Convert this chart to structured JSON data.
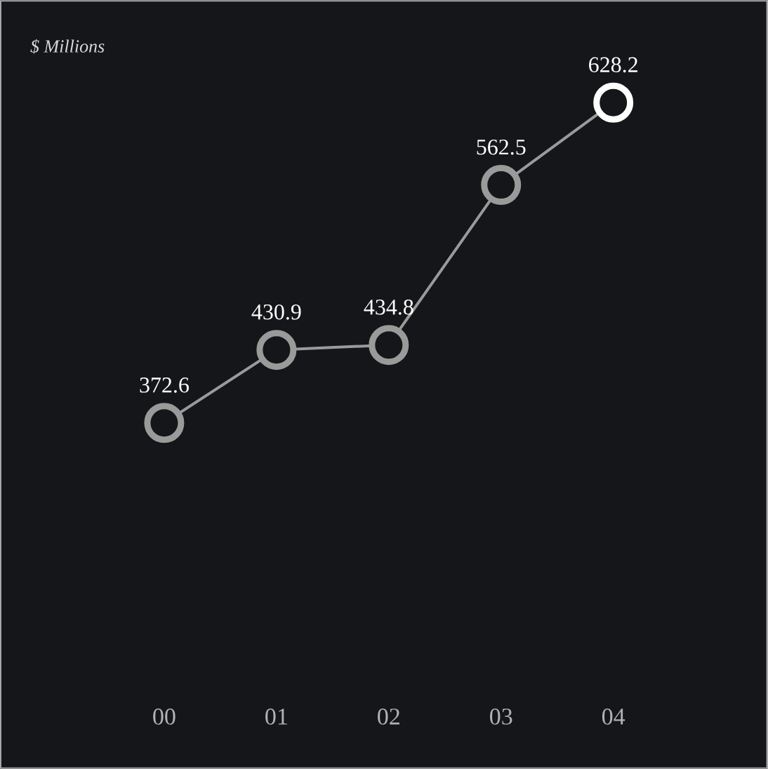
{
  "chart_data": {
    "type": "line",
    "title": "$ Millions",
    "categories": [
      "00",
      "01",
      "02",
      "03",
      "04"
    ],
    "values": [
      372.6,
      430.9,
      434.8,
      562.5,
      628.2
    ],
    "value_labels": [
      "372.6",
      "430.9",
      "434.8",
      "562.5",
      "628.2"
    ],
    "color": "#9a9a9a",
    "colors": [
      "#9a9a9a",
      "#9a9a9a",
      "#9a9a9a",
      "#9a9a9a",
      "#ffffff"
    ],
    "marker": "circle"
  }
}
